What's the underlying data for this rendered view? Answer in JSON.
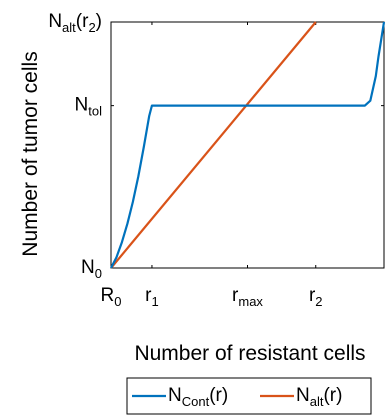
{
  "chart_data": {
    "type": "line",
    "xlabel": "Number of resistant cells",
    "ylabel": "Number of tumor cells",
    "x_ticks": [
      {
        "pos": 0,
        "main": "R",
        "sub": "0"
      },
      {
        "pos": 0.15,
        "main": "r",
        "sub": "1"
      },
      {
        "pos": 0.5,
        "main": "r",
        "sub": "max"
      },
      {
        "pos": 0.75,
        "main": "r",
        "sub": "2"
      }
    ],
    "y_ticks": [
      {
        "pos": 0,
        "main": "N",
        "sub": "0"
      },
      {
        "pos": 0.66,
        "main": "N",
        "sub": "tol"
      },
      {
        "pos": 1.0,
        "main": "N",
        "sub": "alt",
        "tail": "(r",
        "sub2": "2",
        "end": ")"
      }
    ],
    "xlim": [
      0,
      1
    ],
    "ylim": [
      0,
      1
    ],
    "grid": false,
    "series": [
      {
        "name_main": "N",
        "name_sub": "Cont",
        "name_tail": "(r)",
        "color": "#0072BD",
        "x": [
          0,
          0.02,
          0.04,
          0.06,
          0.08,
          0.1,
          0.12,
          0.14,
          0.15,
          0.93,
          0.95,
          0.97,
          0.98,
          1.0
        ],
        "y": [
          0,
          0.044,
          0.105,
          0.18,
          0.268,
          0.372,
          0.492,
          0.618,
          0.66,
          0.66,
          0.68,
          0.78,
          0.86,
          1.0
        ]
      },
      {
        "name_main": "N",
        "name_sub": "alt",
        "name_tail": "(r)",
        "color": "#D95319",
        "x": [
          0,
          0.75
        ],
        "y": [
          0,
          1.0
        ]
      }
    ],
    "legend_position": "bottom"
  }
}
